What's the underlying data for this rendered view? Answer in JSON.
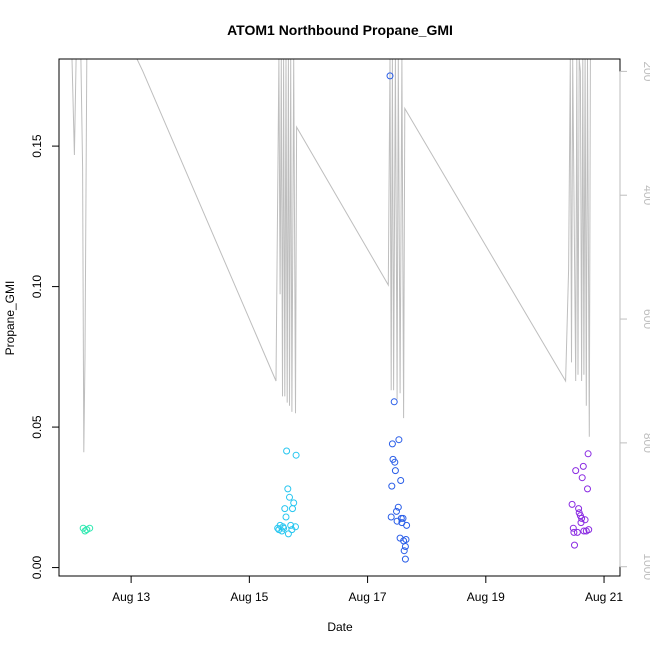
{
  "chart_data": {
    "type": "scatter",
    "title": "ATOM1 Northbound Propane_GMI",
    "xlabel": "Date",
    "ylabel": "Propane_GMI",
    "x_ticks": [
      {
        "day": 13,
        "label": "Aug 13"
      },
      {
        "day": 15,
        "label": "Aug 15"
      },
      {
        "day": 17,
        "label": "Aug 17"
      },
      {
        "day": 19,
        "label": "Aug 19"
      },
      {
        "day": 21,
        "label": "Aug 21"
      }
    ],
    "y_ticks": [
      {
        "value": 0.0,
        "label": "0.00"
      },
      {
        "value": 0.05,
        "label": "0.05"
      },
      {
        "value": 0.1,
        "label": "0.10"
      },
      {
        "value": 0.15,
        "label": "0.15"
      }
    ],
    "y2_ticks": [
      {
        "value": 200,
        "label": "200"
      },
      {
        "value": 400,
        "label": "400"
      },
      {
        "value": 600,
        "label": "600"
      },
      {
        "value": 800,
        "label": "800"
      },
      {
        "value": 1000,
        "label": "1000"
      }
    ],
    "xlim": [
      11.78,
      21.27
    ],
    "ylim": [
      -0.003,
      0.181
    ],
    "y2lim": [
      180,
      1015
    ],
    "y2_reversed": true,
    "line_color": "#bebebe",
    "points": [
      {
        "x": 12.19,
        "y": 0.014,
        "color": "#2ee8b0"
      },
      {
        "x": 12.22,
        "y": 0.013,
        "color": "#2ee8b0"
      },
      {
        "x": 12.25,
        "y": 0.0135,
        "color": "#2ee8b0"
      },
      {
        "x": 12.3,
        "y": 0.014,
        "color": "#2ee8b0"
      },
      {
        "x": 15.48,
        "y": 0.014,
        "color": "#26c6f0"
      },
      {
        "x": 15.5,
        "y": 0.0135,
        "color": "#26c6f0"
      },
      {
        "x": 15.52,
        "y": 0.015,
        "color": "#26c6f0"
      },
      {
        "x": 15.55,
        "y": 0.013,
        "color": "#26c6f0"
      },
      {
        "x": 15.57,
        "y": 0.0145,
        "color": "#26c6f0"
      },
      {
        "x": 15.6,
        "y": 0.021,
        "color": "#26c6f0"
      },
      {
        "x": 15.62,
        "y": 0.018,
        "color": "#26c6f0"
      },
      {
        "x": 15.63,
        "y": 0.0415,
        "color": "#26c6f0"
      },
      {
        "x": 15.65,
        "y": 0.028,
        "color": "#26c6f0"
      },
      {
        "x": 15.66,
        "y": 0.012,
        "color": "#26c6f0"
      },
      {
        "x": 15.68,
        "y": 0.025,
        "color": "#26c6f0"
      },
      {
        "x": 15.7,
        "y": 0.015,
        "color": "#26c6f0"
      },
      {
        "x": 15.72,
        "y": 0.0135,
        "color": "#26c6f0"
      },
      {
        "x": 15.73,
        "y": 0.021,
        "color": "#26c6f0"
      },
      {
        "x": 15.75,
        "y": 0.023,
        "color": "#26c6f0"
      },
      {
        "x": 15.78,
        "y": 0.0145,
        "color": "#26c6f0"
      },
      {
        "x": 15.79,
        "y": 0.04,
        "color": "#26c6f0"
      },
      {
        "x": 15.58,
        "y": 0.014,
        "color": "#26c6f0"
      },
      {
        "x": 17.38,
        "y": 0.175,
        "color": "#2a5ee8"
      },
      {
        "x": 17.4,
        "y": 0.018,
        "color": "#2a5ee8"
      },
      {
        "x": 17.41,
        "y": 0.029,
        "color": "#2a5ee8"
      },
      {
        "x": 17.42,
        "y": 0.044,
        "color": "#2a5ee8"
      },
      {
        "x": 17.43,
        "y": 0.0385,
        "color": "#2a5ee8"
      },
      {
        "x": 17.45,
        "y": 0.059,
        "color": "#2a5ee8"
      },
      {
        "x": 17.46,
        "y": 0.0375,
        "color": "#2a5ee8"
      },
      {
        "x": 17.47,
        "y": 0.0345,
        "color": "#2a5ee8"
      },
      {
        "x": 17.49,
        "y": 0.02,
        "color": "#2a5ee8"
      },
      {
        "x": 17.5,
        "y": 0.0165,
        "color": "#2a5ee8"
      },
      {
        "x": 17.52,
        "y": 0.0215,
        "color": "#2a5ee8"
      },
      {
        "x": 17.53,
        "y": 0.0455,
        "color": "#2a5ee8"
      },
      {
        "x": 17.55,
        "y": 0.0105,
        "color": "#2a5ee8"
      },
      {
        "x": 17.56,
        "y": 0.031,
        "color": "#2a5ee8"
      },
      {
        "x": 17.57,
        "y": 0.0175,
        "color": "#2a5ee8"
      },
      {
        "x": 17.58,
        "y": 0.016,
        "color": "#2a5ee8"
      },
      {
        "x": 17.6,
        "y": 0.0175,
        "color": "#2a5ee8"
      },
      {
        "x": 17.61,
        "y": 0.0095,
        "color": "#2a5ee8"
      },
      {
        "x": 17.62,
        "y": 0.006,
        "color": "#2a5ee8"
      },
      {
        "x": 17.64,
        "y": 0.003,
        "color": "#2a5ee8"
      },
      {
        "x": 17.65,
        "y": 0.01,
        "color": "#2a5ee8"
      },
      {
        "x": 17.66,
        "y": 0.015,
        "color": "#2a5ee8"
      },
      {
        "x": 17.64,
        "y": 0.0075,
        "color": "#2a5ee8"
      },
      {
        "x": 20.46,
        "y": 0.0225,
        "color": "#8a2be2"
      },
      {
        "x": 20.48,
        "y": 0.014,
        "color": "#8a2be2"
      },
      {
        "x": 20.49,
        "y": 0.0125,
        "color": "#8a2be2"
      },
      {
        "x": 20.5,
        "y": 0.008,
        "color": "#8a2be2"
      },
      {
        "x": 20.52,
        "y": 0.0345,
        "color": "#8a2be2"
      },
      {
        "x": 20.55,
        "y": 0.0125,
        "color": "#8a2be2"
      },
      {
        "x": 20.57,
        "y": 0.021,
        "color": "#8a2be2"
      },
      {
        "x": 20.58,
        "y": 0.0195,
        "color": "#8a2be2"
      },
      {
        "x": 20.6,
        "y": 0.0185,
        "color": "#8a2be2"
      },
      {
        "x": 20.61,
        "y": 0.016,
        "color": "#8a2be2"
      },
      {
        "x": 20.62,
        "y": 0.0175,
        "color": "#8a2be2"
      },
      {
        "x": 20.63,
        "y": 0.032,
        "color": "#8a2be2"
      },
      {
        "x": 20.65,
        "y": 0.036,
        "color": "#8a2be2"
      },
      {
        "x": 20.66,
        "y": 0.013,
        "color": "#8a2be2"
      },
      {
        "x": 20.68,
        "y": 0.017,
        "color": "#8a2be2"
      },
      {
        "x": 20.7,
        "y": 0.013,
        "color": "#8a2be2"
      },
      {
        "x": 20.72,
        "y": 0.028,
        "color": "#8a2be2"
      },
      {
        "x": 20.73,
        "y": 0.0405,
        "color": "#8a2be2"
      },
      {
        "x": 20.74,
        "y": 0.0135,
        "color": "#8a2be2"
      }
    ],
    "secondary_line": [
      [
        11.95,
        170
      ],
      [
        12.0,
        155
      ],
      [
        12.04,
        335
      ],
      [
        12.07,
        130
      ],
      [
        12.15,
        130
      ],
      [
        12.18,
        355
      ],
      [
        12.2,
        815
      ],
      [
        12.22,
        660
      ],
      [
        12.25,
        155
      ],
      [
        12.3,
        145
      ],
      [
        13.1,
        180
      ],
      [
        13.2,
        200
      ],
      [
        15.45,
        700
      ],
      [
        15.5,
        165
      ],
      [
        15.52,
        560
      ],
      [
        15.54,
        150
      ],
      [
        15.56,
        725
      ],
      [
        15.58,
        170
      ],
      [
        15.6,
        725
      ],
      [
        15.62,
        150
      ],
      [
        15.64,
        735
      ],
      [
        15.66,
        140
      ],
      [
        15.68,
        740
      ],
      [
        15.7,
        160
      ],
      [
        15.72,
        750
      ],
      [
        15.75,
        140
      ],
      [
        15.78,
        752
      ],
      [
        15.8,
        290
      ],
      [
        17.35,
        545
      ],
      [
        17.38,
        125
      ],
      [
        17.4,
        715
      ],
      [
        17.42,
        130
      ],
      [
        17.44,
        715
      ],
      [
        17.47,
        130
      ],
      [
        17.5,
        730
      ],
      [
        17.52,
        140
      ],
      [
        17.55,
        720
      ],
      [
        17.58,
        130
      ],
      [
        17.61,
        760
      ],
      [
        17.63,
        260
      ],
      [
        20.35,
        700
      ],
      [
        20.4,
        520
      ],
      [
        20.43,
        160
      ],
      [
        20.45,
        670
      ],
      [
        20.47,
        140
      ],
      [
        20.52,
        700
      ],
      [
        20.54,
        140
      ],
      [
        20.56,
        690
      ],
      [
        20.58,
        150
      ],
      [
        20.6,
        200
      ],
      [
        20.62,
        700
      ],
      [
        20.64,
        140
      ],
      [
        20.66,
        690
      ],
      [
        20.68,
        170
      ],
      [
        20.7,
        740
      ],
      [
        20.72,
        150
      ],
      [
        20.75,
        790
      ],
      [
        20.77,
        180
      ]
    ]
  }
}
